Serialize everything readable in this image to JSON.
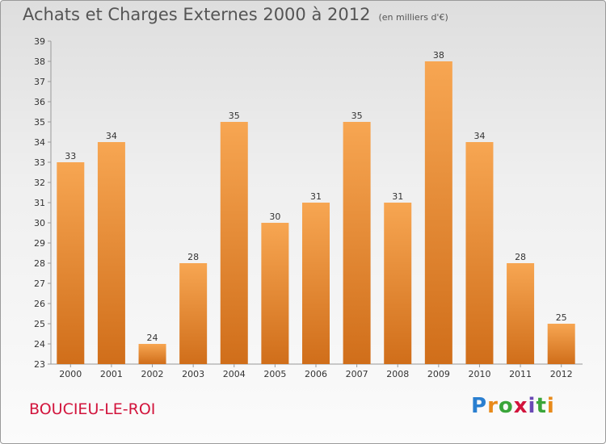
{
  "header": {
    "title": "Achats et Charges Externes 2000 à 2012",
    "subtitle": "(en milliers d'€)"
  },
  "footer": {
    "town": "BOUCIEU-LE-ROI",
    "logo": [
      "P",
      "r",
      "o",
      "x",
      "i",
      "t",
      "i"
    ]
  },
  "colors": {
    "bar_light": "#f7a652",
    "bar_dark": "#d06e1a",
    "town": "#d2143c"
  },
  "chart_data": {
    "type": "bar",
    "title": "Achats et Charges Externes 2000 à 2012",
    "subtitle": "(en milliers d'€)",
    "categories": [
      "2000",
      "2001",
      "2002",
      "2003",
      "2004",
      "2005",
      "2006",
      "2007",
      "2008",
      "2009",
      "2010",
      "2011",
      "2012"
    ],
    "values": [
      33,
      34,
      24,
      28,
      35,
      30,
      31,
      35,
      31,
      38,
      34,
      28,
      25
    ],
    "ylim": [
      23,
      39
    ],
    "yticks": [
      23,
      24,
      25,
      26,
      27,
      28,
      29,
      30,
      31,
      32,
      33,
      34,
      35,
      36,
      37,
      38,
      39
    ],
    "grid": false,
    "xlabel": "",
    "ylabel": ""
  }
}
